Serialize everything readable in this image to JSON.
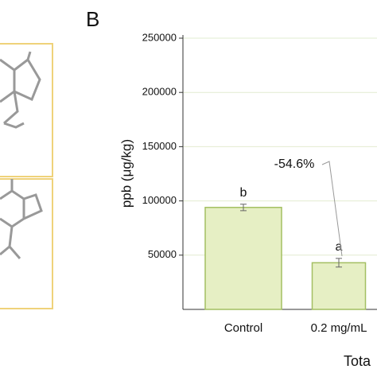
{
  "chart_data": {
    "type": "bar",
    "panel_label": "B",
    "y_label": "ppb (μg/kg)",
    "x_label": "Tota",
    "categories": [
      "Control",
      "0.2 mg/mL"
    ],
    "values": [
      94000,
      43000
    ],
    "errors": [
      3000,
      4000
    ],
    "significance": [
      "b",
      "a"
    ],
    "annotation": "-54.6%",
    "color": "#e6efc4",
    "edge_color": "#a3bf62",
    "grid": true,
    "ylim": [
      0,
      250000
    ],
    "yticks": [
      50000,
      100000,
      150000,
      200000,
      250000
    ]
  }
}
